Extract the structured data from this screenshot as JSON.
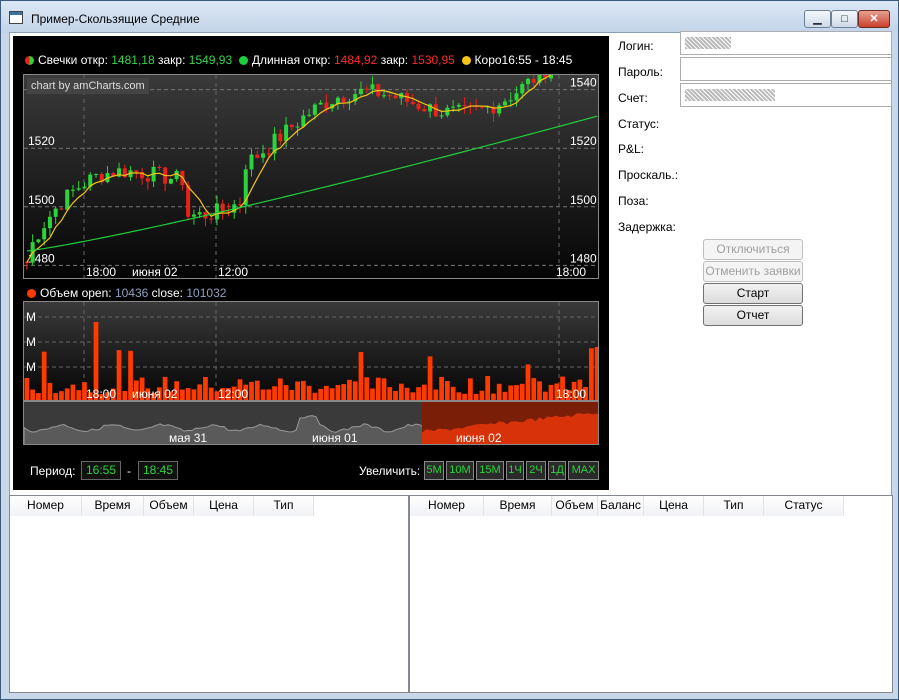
{
  "window": {
    "title": "Пример-Скользящие Средние",
    "min": "▁",
    "max": "□",
    "close": "✕"
  },
  "chart": {
    "legend": {
      "candles_label": "Свечки",
      "open_label": "откр:",
      "open_value": "1481,18",
      "close_label": "закр:",
      "close_value": "1549,93",
      "long_label": "Длинная",
      "long_open_label": "откр:",
      "long_open_value": "1484,92",
      "long_close_label": "закр:",
      "long_close_value": "1530,95",
      "short_label": "Коро",
      "time_range": "16:55 - 18:45"
    },
    "watermark": "chart by amCharts.com",
    "y_ticks": [
      "1540",
      "1520",
      "1500",
      "1480"
    ],
    "x_ticks": [
      "18:00",
      "июня 02",
      "12:00",
      "18:00"
    ],
    "volume_legend": {
      "label": "Объем",
      "open_label": "open:",
      "open_value": "10436",
      "close_label": "close:",
      "close_value": "101032"
    },
    "volume_y_ticks": [
      "M",
      "M",
      "M"
    ],
    "volume_x_ticks": [
      "18:00",
      "июня 02",
      "12:00",
      "18:00"
    ],
    "scroller_labels": [
      "мая 31",
      "июня 01",
      "июня 02"
    ],
    "period_label": "Период:",
    "period_from": "16:55",
    "period_dash": "-",
    "period_to": "18:45",
    "zoom_label": "Увеличить:",
    "zoom_buttons": [
      "5M",
      "10M",
      "15M",
      "1Ч",
      "2Ч",
      "1Д",
      "MAX"
    ],
    "colors": {
      "up": "#2bd43a",
      "down": "#e8221a",
      "short_ma": "#f5c518",
      "long_ma": "#1fcf3a",
      "volume": "#ff3a00"
    }
  },
  "chart_data": {
    "type": "line",
    "title": "",
    "x_range": [
      "16:55",
      "18:45"
    ],
    "ylim": [
      1475,
      1545
    ],
    "series": [
      {
        "name": "Свечки",
        "open": 1481.18,
        "close": 1549.93
      },
      {
        "name": "Длинная",
        "open": 1484.92,
        "close": 1530.95
      }
    ],
    "volume": {
      "name": "Объем",
      "open": 10436,
      "close": 101032
    }
  },
  "panel": {
    "login_label": "Логин:",
    "password_label": "Пароль:",
    "account_label": "Счет:",
    "status_label": "Статус:",
    "pnl_label": "P&L:",
    "slippage_label": "Проскаль.:",
    "position_label": "Поза:",
    "delay_label": "Задержка:",
    "disconnect_button": "Отключиться",
    "cancel_orders_button": "Отменить заявки",
    "start_button": "Старт",
    "report_button": "Отчет"
  },
  "trades_table": {
    "columns": [
      "Номер",
      "Время",
      "Объем",
      "Цена",
      "Тип"
    ]
  },
  "orders_table": {
    "columns": [
      "Номер",
      "Время",
      "Объем",
      "Баланс",
      "Цена",
      "Тип",
      "Статус"
    ]
  }
}
